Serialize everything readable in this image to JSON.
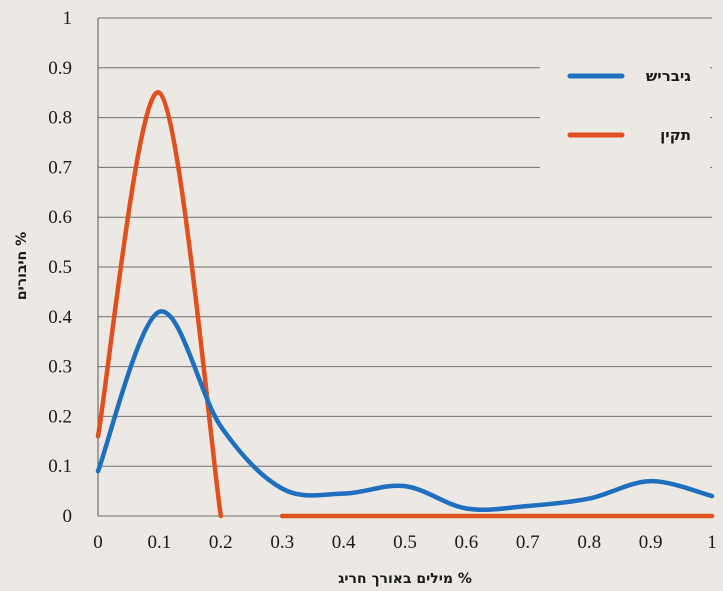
{
  "chart_data": {
    "type": "line",
    "xlabel": "% מילים באורך חריג",
    "ylabel": "% חיבורים",
    "xlim": [
      0,
      1
    ],
    "ylim": [
      0,
      1
    ],
    "x_ticks": [
      "0",
      "0.1",
      "0.2",
      "0.3",
      "0.4",
      "0.5",
      "0.6",
      "0.7",
      "0.8",
      "0.9",
      "1"
    ],
    "y_ticks": [
      "0",
      "0.1",
      "0.2",
      "0.3",
      "0.4",
      "0.5",
      "0.6",
      "0.7",
      "0.8",
      "0.9",
      "1"
    ],
    "grid": true,
    "legend_position": "top-right",
    "series": [
      {
        "name": "גיבריש",
        "color": "#1f6fbf",
        "points": [
          [
            0,
            0.09
          ],
          [
            0.1,
            0.41
          ],
          [
            0.2,
            0.18
          ],
          [
            0.3,
            0.055
          ],
          [
            0.4,
            0.045
          ],
          [
            0.5,
            0.06
          ],
          [
            0.6,
            0.015
          ],
          [
            0.7,
            0.02
          ],
          [
            0.8,
            0.035
          ],
          [
            0.9,
            0.07
          ],
          [
            1.0,
            0.04
          ]
        ]
      },
      {
        "name": "תקין",
        "color": "#e0501e",
        "points": [
          [
            0,
            0.16
          ],
          [
            0.1,
            0.85
          ],
          [
            0.2,
            0.0
          ]
        ],
        "tail": [
          [
            0.3,
            0.0
          ],
          [
            1.0,
            0.0
          ]
        ]
      }
    ]
  }
}
